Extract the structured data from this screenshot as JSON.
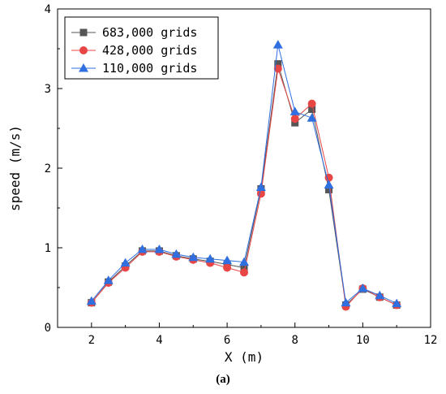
{
  "caption": "(a)",
  "chart_data": {
    "type": "line",
    "xlabel": "X (m)",
    "ylabel": "speed (m/s)",
    "xlim": [
      1,
      12
    ],
    "ylim": [
      0,
      4
    ],
    "xticks": [
      2,
      4,
      6,
      8,
      10,
      12
    ],
    "yticks": [
      0,
      1,
      2,
      3,
      4
    ],
    "grid": false,
    "legend_position": "top-left",
    "x": [
      2,
      2.5,
      3,
      3.5,
      4,
      4.5,
      5,
      5.5,
      6,
      6.5,
      7,
      7.5,
      8,
      8.5,
      9,
      9.5,
      10,
      10.5,
      11
    ],
    "series": [
      {
        "name": "683,000 grids",
        "marker": "square",
        "color": "#555555",
        "values": [
          0.31,
          0.57,
          0.77,
          0.96,
          0.96,
          0.9,
          0.86,
          0.83,
          0.79,
          0.75,
          1.74,
          3.31,
          2.57,
          2.74,
          1.73,
          0.28,
          0.48,
          0.38,
          0.28
        ]
      },
      {
        "name": "428,000 grids",
        "marker": "circle",
        "color": "#e84545",
        "values": [
          0.31,
          0.56,
          0.75,
          0.95,
          0.95,
          0.89,
          0.85,
          0.81,
          0.75,
          0.69,
          1.68,
          3.25,
          2.62,
          2.81,
          1.88,
          0.26,
          0.49,
          0.38,
          0.28
        ]
      },
      {
        "name": "110,000 grids",
        "marker": "triangle",
        "color": "#2f6fe0",
        "values": [
          0.33,
          0.59,
          0.81,
          0.98,
          0.98,
          0.92,
          0.88,
          0.86,
          0.84,
          0.82,
          1.76,
          3.55,
          2.71,
          2.63,
          1.79,
          0.31,
          0.49,
          0.4,
          0.3
        ]
      }
    ]
  }
}
